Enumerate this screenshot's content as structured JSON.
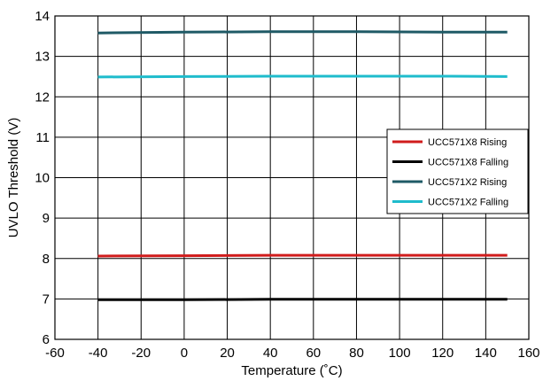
{
  "chart_data": {
    "type": "line",
    "title": "",
    "xlabel": "Temperature (˚C)",
    "ylabel": "UVLO Threshold (V)",
    "xlim": [
      -60,
      160
    ],
    "ylim": [
      6,
      14
    ],
    "xticks": [
      -60,
      -40,
      -20,
      0,
      20,
      40,
      60,
      80,
      100,
      120,
      140,
      160
    ],
    "yticks": [
      6,
      7,
      8,
      9,
      10,
      11,
      12,
      13,
      14
    ],
    "grid": true,
    "legend_position": "right",
    "series": [
      {
        "name": "UCC571X8 Rising",
        "color": "#d01c1c",
        "x": [
          -40,
          0,
          40,
          80,
          120,
          150
        ],
        "y": [
          8.06,
          8.07,
          8.08,
          8.08,
          8.08,
          8.08
        ]
      },
      {
        "name": "UCC571X8 Falling",
        "color": "#000000",
        "x": [
          -40,
          0,
          40,
          80,
          120,
          150
        ],
        "y": [
          6.98,
          6.98,
          6.99,
          6.99,
          6.99,
          6.99
        ]
      },
      {
        "name": "UCC571X2 Rising",
        "color": "#1f5a66",
        "x": [
          -40,
          0,
          40,
          80,
          120,
          150
        ],
        "y": [
          13.58,
          13.6,
          13.61,
          13.61,
          13.6,
          13.6
        ]
      },
      {
        "name": "UCC571X2 Falling",
        "color": "#1fbccc",
        "x": [
          -40,
          0,
          40,
          80,
          120,
          150
        ],
        "y": [
          12.49,
          12.5,
          12.51,
          12.51,
          12.51,
          12.5
        ]
      }
    ]
  }
}
